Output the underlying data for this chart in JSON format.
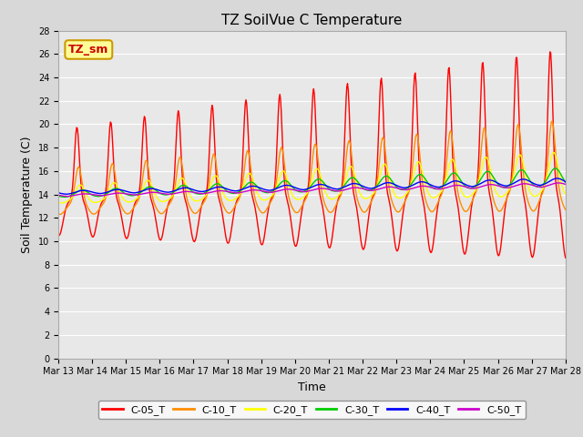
{
  "title": "TZ SoilVue C Temperature",
  "xlabel": "Time",
  "ylabel": "Soil Temperature (C)",
  "ylim": [
    0,
    28
  ],
  "yticks": [
    0,
    2,
    4,
    6,
    8,
    10,
    12,
    14,
    16,
    18,
    20,
    22,
    24,
    26,
    28
  ],
  "x_ticks_labels": [
    "Mar 13",
    "Mar 14",
    "Mar 15",
    "Mar 16",
    "Mar 17",
    "Mar 18",
    "Mar 19",
    "Mar 20",
    "Mar 21",
    "Mar 22",
    "Mar 23",
    "Mar 24",
    "Mar 25",
    "Mar 26",
    "Mar 27",
    "Mar 28"
  ],
  "series_colors": {
    "C-05_T": "#ff0000",
    "C-10_T": "#ff8c00",
    "C-20_T": "#ffff00",
    "C-30_T": "#00cc00",
    "C-40_T": "#0000ff",
    "C-50_T": "#cc00cc"
  },
  "legend_label": "TZ_sm",
  "legend_bg": "#ffff99",
  "legend_border": "#cc9900",
  "legend_text_color": "#cc0000",
  "fig_bg": "#d8d8d8",
  "plot_bg": "#e8e8e8",
  "grid_color": "#ffffff",
  "line_width": 1.0,
  "n_points_per_day": 48
}
